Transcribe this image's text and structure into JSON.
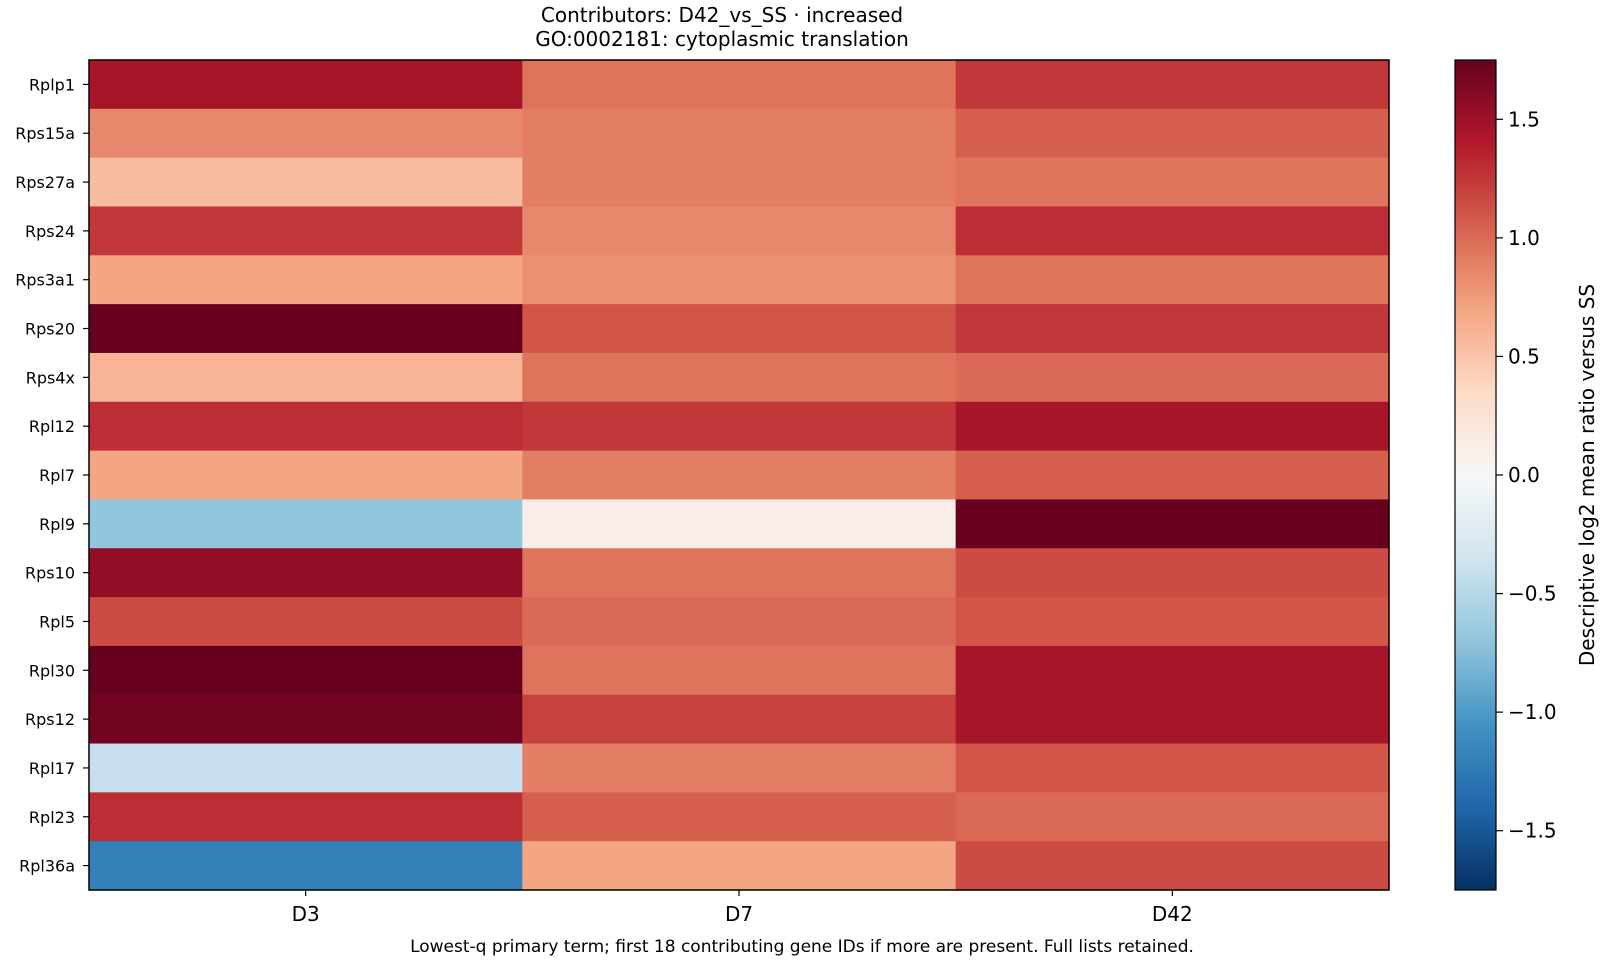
{
  "chart_data": {
    "type": "heatmap",
    "title": "Contributors: D42_vs_SS · increased",
    "subtitle": "GO:0002181: cytoplasmic translation",
    "caption": "Lowest-q primary term; first 18 contributing gene IDs if more are present. Full lists retained.",
    "x_categories": [
      "D3",
      "D7",
      "D42"
    ],
    "y_categories": [
      "Rplp1",
      "Rps15a",
      "Rps27a",
      "Rps24",
      "Rps3a1",
      "Rps20",
      "Rps4x",
      "Rpl12",
      "Rpl7",
      "Rpl9",
      "Rps10",
      "Rpl5",
      "Rpl30",
      "Rps12",
      "Rpl17",
      "Rpl23",
      "Rpl36a"
    ],
    "values": [
      [
        1.45,
        0.95,
        1.25
      ],
      [
        0.85,
        0.9,
        1.05
      ],
      [
        0.55,
        0.9,
        0.95
      ],
      [
        1.25,
        0.85,
        1.3
      ],
      [
        0.7,
        0.8,
        0.95
      ],
      [
        1.75,
        1.1,
        1.25
      ],
      [
        0.6,
        0.95,
        1.0
      ],
      [
        1.3,
        1.25,
        1.45
      ],
      [
        0.7,
        0.9,
        1.05
      ],
      [
        -0.7,
        0.12,
        1.85
      ],
      [
        1.55,
        0.95,
        1.15
      ],
      [
        1.15,
        1.0,
        1.1
      ],
      [
        1.8,
        0.95,
        1.45
      ],
      [
        1.7,
        1.2,
        1.45
      ],
      [
        -0.4,
        0.9,
        1.1
      ],
      [
        1.3,
        1.05,
        1.0
      ],
      [
        -1.2,
        0.7,
        1.15
      ]
    ],
    "colorbar": {
      "label": "Descriptive log2 mean ratio versus SS",
      "range": [
        -1.75,
        1.75
      ],
      "ticks": [
        -1.5,
        -1.0,
        -0.5,
        0.0,
        0.5,
        1.0,
        1.5
      ],
      "tick_labels": [
        "−1.5",
        "−1.0",
        "−0.5",
        "0.0",
        "0.5",
        "1.0",
        "1.5"
      ],
      "colormap": "RdBu_r",
      "colormap_stops": [
        "#053061",
        "#2166ac",
        "#4393c3",
        "#92c5de",
        "#d1e5f0",
        "#f7f7f7",
        "#fddbc7",
        "#f4a582",
        "#d6604d",
        "#b2182b",
        "#67001f"
      ]
    },
    "grid": false
  }
}
